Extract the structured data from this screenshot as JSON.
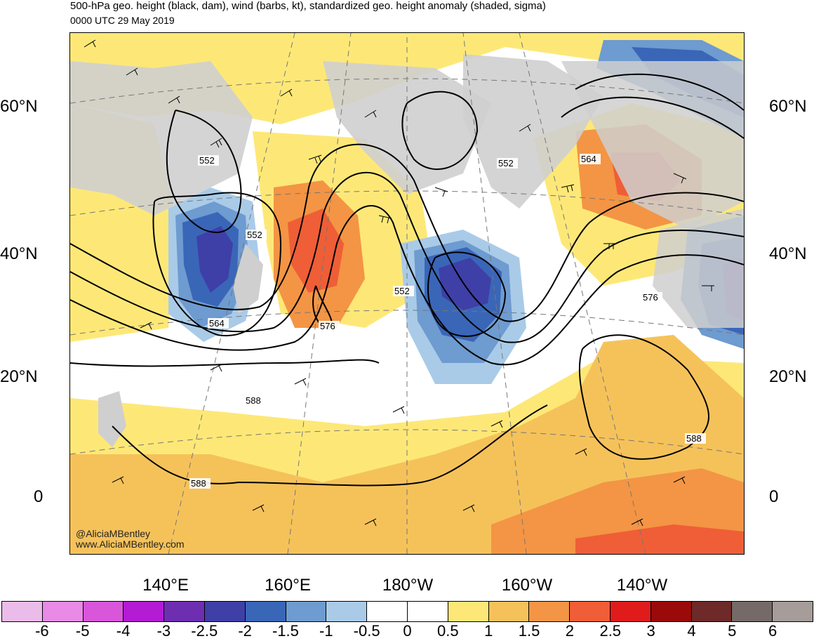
{
  "title": "500-hPa geo. height (black, dam), wind (barbs, kt), standardized geo. height anomaly (shaded, sigma)",
  "valid_time": "0000 UTC 29 May 2019",
  "credit": {
    "handle": "@AliciaMBentley",
    "website": "www.AliciaMBentley.com"
  },
  "lat_labels": {
    "left": [
      "60°N",
      "40°N",
      "20°N",
      "0"
    ],
    "right": [
      "60°N",
      "40°N",
      "20°N",
      "0"
    ]
  },
  "lon_labels": [
    "140°E",
    "160°E",
    "180°W",
    "160°W",
    "140°W"
  ],
  "contour_labels": [
    "552",
    "552",
    "552",
    "552",
    "564",
    "564",
    "576",
    "576",
    "588",
    "588",
    "588"
  ],
  "colorbar": {
    "labels": [
      "-6",
      "-5",
      "-4",
      "-3",
      "-2.5",
      "-2",
      "-1.5",
      "-1",
      "-0.5",
      "0",
      "0.5",
      "1",
      "1.5",
      "2",
      "2.5",
      "3",
      "4",
      "5",
      "6"
    ],
    "colors": [
      "#ebbce9",
      "#e88ae6",
      "#d956da",
      "#b31bd4",
      "#6e2eb2",
      "#3f3fa8",
      "#3a66b8",
      "#6e9bd0",
      "#a9cbe8",
      "#ffffff",
      "#ffffff",
      "#fde877",
      "#f5c25a",
      "#f39544",
      "#ef5e36",
      "#e01b1b",
      "#9a0a0a",
      "#6d2a28",
      "#766a68",
      "#a69c9a"
    ]
  },
  "colors": {
    "land": "#cfcfcf",
    "neutral": "#ffffff",
    "contour": "#000000"
  }
}
